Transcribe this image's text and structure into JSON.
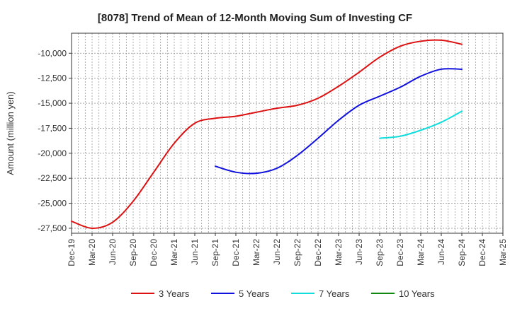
{
  "chart_data": {
    "type": "line",
    "title": "[8078]  Trend of Mean of 12-Month Moving Sum of Investing CF",
    "xlabel": "",
    "ylabel": "Amount (million yen)",
    "ylim": [
      -28000,
      -8000
    ],
    "yticks": [
      -10000,
      -12500,
      -15000,
      -17500,
      -20000,
      -22500,
      -25000,
      -27500
    ],
    "ytick_labels": [
      "-10,000",
      "-12,500",
      "-15,000",
      "-17,500",
      "-20,000",
      "-22,500",
      "-25,000",
      "-27,500"
    ],
    "categories": [
      "Dec-19",
      "Mar-20",
      "Jun-20",
      "Sep-20",
      "Dec-20",
      "Mar-21",
      "Jun-21",
      "Sep-21",
      "Dec-21",
      "Mar-22",
      "Jun-22",
      "Sep-22",
      "Dec-22",
      "Mar-23",
      "Jun-23",
      "Sep-23",
      "Dec-23",
      "Mar-24",
      "Jun-24",
      "Sep-24",
      "Dec-24",
      "Mar-25"
    ],
    "grid": true,
    "legend_position": "bottom",
    "series": [
      {
        "name": "3 Years",
        "color": "#dd1111",
        "values": [
          -26800,
          -27500,
          -26900,
          -24800,
          -21900,
          -19000,
          -17000,
          -16500,
          -16300,
          -15900,
          -15500,
          -15200,
          -14500,
          -13300,
          -11900,
          -10400,
          -9300,
          -8800,
          -8700,
          -9100,
          null,
          null
        ]
      },
      {
        "name": "5 Years",
        "color": "#1111dd",
        "values": [
          null,
          null,
          null,
          null,
          null,
          null,
          null,
          -21300,
          -21900,
          -22000,
          -21500,
          -20200,
          -18500,
          -16700,
          -15200,
          -14300,
          -13400,
          -12300,
          -11600,
          -11600,
          null,
          null
        ]
      },
      {
        "name": "7 Years",
        "color": "#11dddd",
        "values": [
          null,
          null,
          null,
          null,
          null,
          null,
          null,
          null,
          null,
          null,
          null,
          null,
          null,
          null,
          null,
          -18500,
          -18300,
          -17700,
          -16900,
          -15800,
          null,
          null
        ]
      },
      {
        "name": "10 Years",
        "color": "#118811",
        "values": [
          null,
          null,
          null,
          null,
          null,
          null,
          null,
          null,
          null,
          null,
          null,
          null,
          null,
          null,
          null,
          null,
          null,
          null,
          null,
          null,
          null,
          null
        ]
      }
    ]
  }
}
